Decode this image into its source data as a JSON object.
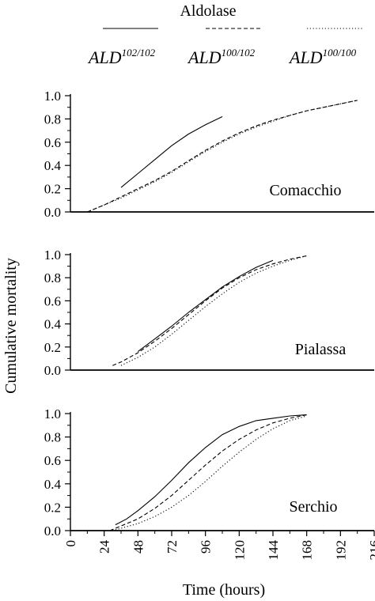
{
  "chart_data": {
    "type": "line",
    "legend": {
      "title": "Aldolase",
      "placement": "top",
      "entries": [
        {
          "base": "ALD",
          "sup": "102/102",
          "style": "solid"
        },
        {
          "base": "ALD",
          "sup": "100/102",
          "style": "dashed"
        },
        {
          "base": "ALD",
          "sup": "100/100",
          "style": "dotted"
        }
      ]
    },
    "xlabel": "Time (hours)",
    "ylabel": "Cumulative mortality",
    "xlim": [
      0,
      216
    ],
    "xticks": [
      "0",
      "24",
      "48",
      "72",
      "96",
      "120",
      "144",
      "168",
      "192",
      "216"
    ],
    "ylim": [
      0,
      1.0
    ],
    "yticks": [
      "0.0",
      "0.2",
      "0.4",
      "0.6",
      "0.8",
      "1.0"
    ],
    "grid": false,
    "panels": [
      {
        "label": "Comacchio",
        "series": [
          {
            "style": "solid",
            "x": [
              36,
              48,
              60,
              72,
              84,
              96,
              108
            ],
            "y": [
              0.21,
              0.33,
              0.45,
              0.57,
              0.67,
              0.75,
              0.82
            ]
          },
          {
            "style": "dashed",
            "x": [
              12,
              24,
              36,
              48,
              60,
              72,
              84,
              96,
              108,
              120,
              132,
              144,
              156,
              168,
              180,
              192,
              204
            ],
            "y": [
              0.0,
              0.06,
              0.13,
              0.2,
              0.27,
              0.35,
              0.44,
              0.53,
              0.61,
              0.68,
              0.74,
              0.79,
              0.83,
              0.87,
              0.9,
              0.93,
              0.96
            ]
          },
          {
            "style": "dotted",
            "x": [
              12,
              24,
              36,
              48,
              60,
              72,
              84,
              96,
              108,
              120,
              132,
              144,
              156,
              168,
              180,
              192,
              204
            ],
            "y": [
              0.0,
              0.06,
              0.12,
              0.19,
              0.26,
              0.34,
              0.43,
              0.52,
              0.6,
              0.67,
              0.73,
              0.78,
              0.83,
              0.87,
              0.9,
              0.93,
              0.96
            ]
          }
        ]
      },
      {
        "label": "Pialassa",
        "series": [
          {
            "style": "solid",
            "x": [
              48,
              60,
              72,
              84,
              96,
              108,
              120,
              132,
              144
            ],
            "y": [
              0.16,
              0.27,
              0.38,
              0.5,
              0.61,
              0.72,
              0.81,
              0.89,
              0.95
            ]
          },
          {
            "style": "dashed",
            "x": [
              30,
              36,
              48,
              60,
              72,
              84,
              96,
              108,
              120,
              132,
              144,
              156,
              168
            ],
            "y": [
              0.04,
              0.07,
              0.15,
              0.25,
              0.36,
              0.48,
              0.6,
              0.71,
              0.8,
              0.87,
              0.92,
              0.96,
              0.99
            ]
          },
          {
            "style": "dotted",
            "x": [
              36,
              48,
              60,
              72,
              84,
              96,
              108,
              120,
              132,
              144,
              156,
              168
            ],
            "y": [
              0.04,
              0.11,
              0.2,
              0.31,
              0.43,
              0.55,
              0.66,
              0.76,
              0.84,
              0.9,
              0.95,
              0.99
            ]
          }
        ]
      },
      {
        "label": "Serchio",
        "series": [
          {
            "style": "solid",
            "x": [
              32,
              40,
              48,
              60,
              72,
              84,
              96,
              108,
              120,
              132,
              144,
              156,
              168
            ],
            "y": [
              0.05,
              0.1,
              0.17,
              0.29,
              0.43,
              0.58,
              0.71,
              0.82,
              0.89,
              0.94,
              0.96,
              0.98,
              0.99
            ]
          },
          {
            "style": "dashed",
            "x": [
              28,
              36,
              48,
              60,
              72,
              84,
              96,
              108,
              120,
              132,
              144,
              156,
              168
            ],
            "y": [
              0.0,
              0.04,
              0.1,
              0.19,
              0.3,
              0.43,
              0.56,
              0.68,
              0.78,
              0.86,
              0.92,
              0.96,
              0.99
            ]
          },
          {
            "style": "dotted",
            "x": [
              30,
              36,
              48,
              60,
              72,
              84,
              96,
              108,
              120,
              132,
              144,
              156,
              168
            ],
            "y": [
              0.0,
              0.02,
              0.06,
              0.12,
              0.2,
              0.3,
              0.42,
              0.55,
              0.67,
              0.78,
              0.87,
              0.94,
              0.98
            ]
          }
        ]
      }
    ]
  }
}
